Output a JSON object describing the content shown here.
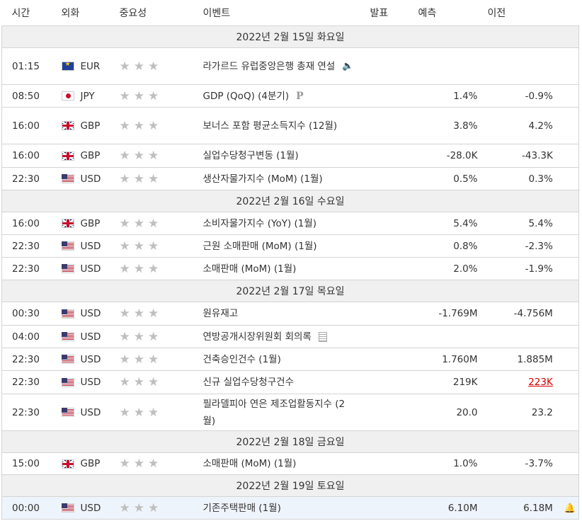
{
  "headers": {
    "time": "시간",
    "currency": "외화",
    "importance": "중요성",
    "event": "이벤트",
    "actual": "발표",
    "forecast": "예측",
    "previous": "이전"
  },
  "stars": "★★★",
  "days": [
    {
      "label": "2022년 2월 15일 화요일",
      "events": [
        {
          "time": "01:15",
          "flag": "eu",
          "currency": "EUR",
          "event": "라가르드 유럽중앙은행 총재 연설",
          "icon": "speech",
          "actual": "",
          "forecast": "",
          "previous": "",
          "h": 52
        },
        {
          "time": "08:50",
          "flag": "jp",
          "currency": "JPY",
          "event": "GDP (QoQ) (4분기)",
          "icon": "p",
          "actual": "",
          "forecast": "1.4%",
          "previous": "-0.9%",
          "h": 32
        },
        {
          "time": "16:00",
          "flag": "gb",
          "currency": "GBP",
          "event": "보너스 포함 평균소득지수 (12월)",
          "icon": "",
          "actual": "",
          "forecast": "3.8%",
          "previous": "4.2%",
          "h": 52
        },
        {
          "time": "16:00",
          "flag": "gb",
          "currency": "GBP",
          "event": "실업수당청구변동 (1월)",
          "icon": "",
          "actual": "",
          "forecast": "-28.0K",
          "previous": "-43.3K",
          "h": 33
        },
        {
          "time": "22:30",
          "flag": "us",
          "currency": "USD",
          "event": "생산자물가지수 (MoM) (1월)",
          "icon": "",
          "actual": "",
          "forecast": "0.5%",
          "previous": "0.3%",
          "h": 32
        }
      ]
    },
    {
      "label": "2022년 2월 16일 수요일",
      "events": [
        {
          "time": "16:00",
          "flag": "gb",
          "currency": "GBP",
          "event": "소비자물가지수 (YoY) (1월)",
          "icon": "",
          "actual": "",
          "forecast": "5.4%",
          "previous": "5.4%",
          "h": 32
        },
        {
          "time": "22:30",
          "flag": "us",
          "currency": "USD",
          "event": "근원 소매판매 (MoM) (1월)",
          "icon": "",
          "actual": "",
          "forecast": "0.8%",
          "previous": "-2.3%",
          "h": 32
        },
        {
          "time": "22:30",
          "flag": "us",
          "currency": "USD",
          "event": "소매판매 (MoM) (1월)",
          "icon": "",
          "actual": "",
          "forecast": "2.0%",
          "previous": "-1.9%",
          "h": 32
        }
      ]
    },
    {
      "label": "2022년 2월 17일 목요일",
      "events": [
        {
          "time": "00:30",
          "flag": "us",
          "currency": "USD",
          "event": "원유재고",
          "icon": "",
          "actual": "",
          "forecast": "-1.769M",
          "previous": "-4.756M",
          "h": 33
        },
        {
          "time": "04:00",
          "flag": "us",
          "currency": "USD",
          "event": "연방공개시장위원회 회의록",
          "icon": "doc",
          "actual": "",
          "forecast": "",
          "previous": "",
          "h": 32
        },
        {
          "time": "22:30",
          "flag": "us",
          "currency": "USD",
          "event": "건축승인건수 (1월)",
          "icon": "",
          "actual": "",
          "forecast": "1.760M",
          "previous": "1.885M",
          "h": 32
        },
        {
          "time": "22:30",
          "flag": "us",
          "currency": "USD",
          "event": "신규 실업수당청구건수",
          "icon": "",
          "actual": "",
          "forecast": "219K",
          "previous": "223K",
          "prevRed": true,
          "h": 33
        },
        {
          "time": "22:30",
          "flag": "us",
          "currency": "USD",
          "event": "필라델피아 연은 제조업활동지수 (2월)",
          "icon": "",
          "actual": "",
          "forecast": "20.0",
          "previous": "23.2",
          "h": 52
        }
      ]
    },
    {
      "label": "2022년 2월 18일 금요일",
      "events": [
        {
          "time": "15:00",
          "flag": "gb",
          "currency": "GBP",
          "event": "소매판매 (MoM) (1월)",
          "icon": "",
          "actual": "",
          "forecast": "1.0%",
          "previous": "-3.7%",
          "h": 31
        }
      ]
    },
    {
      "label": "2022년 2월 19일 토요일",
      "events": [
        {
          "time": "00:00",
          "flag": "us",
          "currency": "USD",
          "event": "기존주택판매 (1월)",
          "icon": "",
          "actual": "",
          "forecast": "6.10M",
          "previous": "6.18M",
          "bell": true,
          "highlight": true,
          "h": 32
        }
      ]
    }
  ],
  "icons": {
    "speech": "speaker-icon",
    "p": "preliminary-icon",
    "doc": "document-icon",
    "bell": "bell-add-icon"
  },
  "colors": {
    "header_bg": "#f0f0f0",
    "highlight_row": "#eef4fb",
    "star": "#bfbfbf",
    "red": "#d40000"
  }
}
